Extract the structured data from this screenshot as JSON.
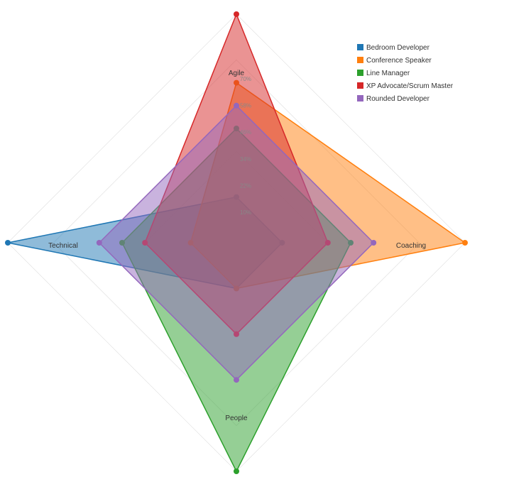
{
  "chart_data": {
    "type": "radar",
    "axes": [
      "Agile",
      "Coaching",
      "People",
      "Technical"
    ],
    "ticks": [
      "10%",
      "22%",
      "34%",
      "46%",
      "58%",
      "70%"
    ],
    "max": 100,
    "legend_position": "top-right",
    "series": [
      {
        "name": "Bedroom Developer",
        "color": "#1f77b4",
        "values": [
          20,
          20,
          20,
          100
        ]
      },
      {
        "name": "Conference Speaker",
        "color": "#ff7f0e",
        "values": [
          70,
          100,
          20,
          20
        ]
      },
      {
        "name": "Line Manager",
        "color": "#2ca02c",
        "values": [
          50,
          50,
          100,
          50
        ]
      },
      {
        "name": "XP Advocate/Scrum Master",
        "color": "#d62728",
        "values": [
          100,
          40,
          40,
          40
        ]
      },
      {
        "name": "Rounded Developer",
        "color": "#9467bd",
        "values": [
          60,
          60,
          60,
          60
        ]
      }
    ]
  }
}
